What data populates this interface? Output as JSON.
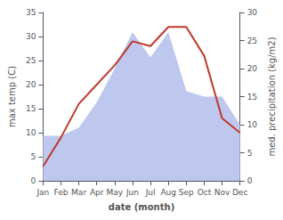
{
  "chart_data": {
    "type": "line",
    "xlabel": "date (month)",
    "ylabel": "max temp (C)",
    "y2label": "med. precipitation (kg/m2)",
    "categories": [
      "Jan",
      "Feb",
      "Mar",
      "Apr",
      "May",
      "Jun",
      "Jul",
      "Aug",
      "Sep",
      "Oct",
      "Nov",
      "Dec"
    ],
    "series": [
      {
        "type": "area",
        "color": "#bec8ef",
        "axis": "y2",
        "values": [
          8,
          8,
          9.5,
          14,
          20,
          26.5,
          22,
          26.5,
          16,
          15,
          15,
          10
        ]
      },
      {
        "type": "line",
        "color": "#c0392b",
        "values": [
          3,
          9,
          16,
          20,
          24,
          29,
          28,
          32,
          32,
          26,
          13,
          10
        ]
      }
    ],
    "ylim": [
      0,
      35
    ],
    "yticks": [
      0,
      5,
      10,
      15,
      20,
      25,
      30,
      35
    ],
    "y2lim": [
      0,
      30
    ],
    "y2ticks": [
      0,
      5,
      10,
      15,
      20,
      25,
      30
    ],
    "grid": false
  }
}
